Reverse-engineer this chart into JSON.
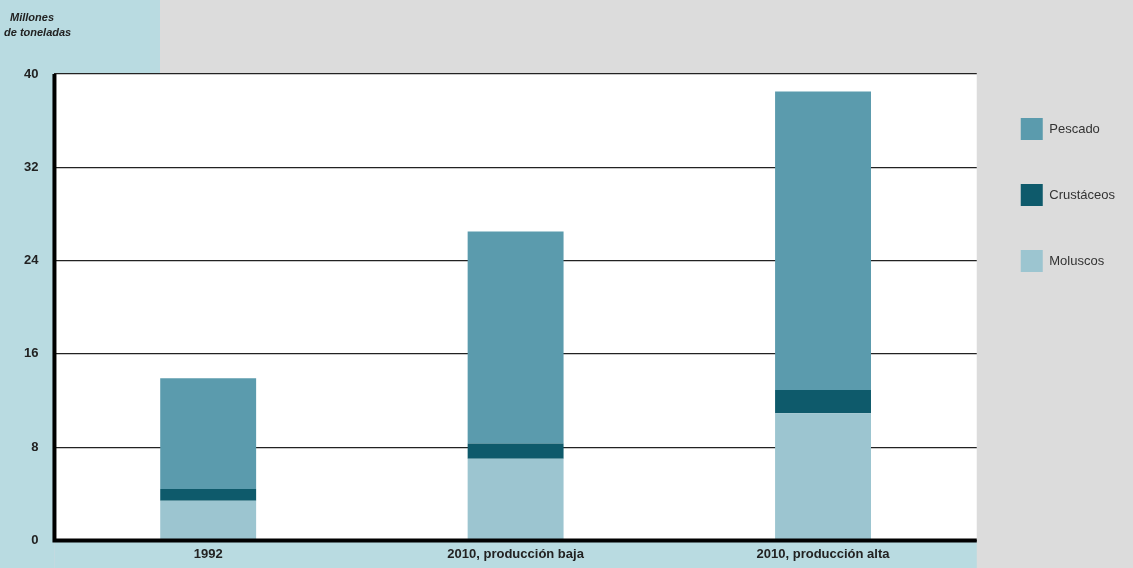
{
  "chart_data": {
    "type": "bar",
    "ylabel": "Millones de toneladas",
    "categories": [
      "1992",
      "2010, producción baja",
      "2010, producción alta"
    ],
    "stacked": true,
    "series": [
      {
        "name": "Moluscos",
        "color": "#9cc5d0",
        "values": [
          3.4,
          7.0,
          10.9
        ]
      },
      {
        "name": "Crustáceos",
        "color": "#0e5a6b",
        "values": [
          1.0,
          1.3,
          2.0
        ]
      },
      {
        "name": "Pescado",
        "color": "#5b9bad",
        "values": [
          9.5,
          18.2,
          25.6
        ]
      }
    ],
    "ylim": [
      0,
      40
    ],
    "yticks": [
      0,
      8,
      16,
      24,
      32,
      40
    ],
    "grid": "y",
    "legend": "right"
  }
}
